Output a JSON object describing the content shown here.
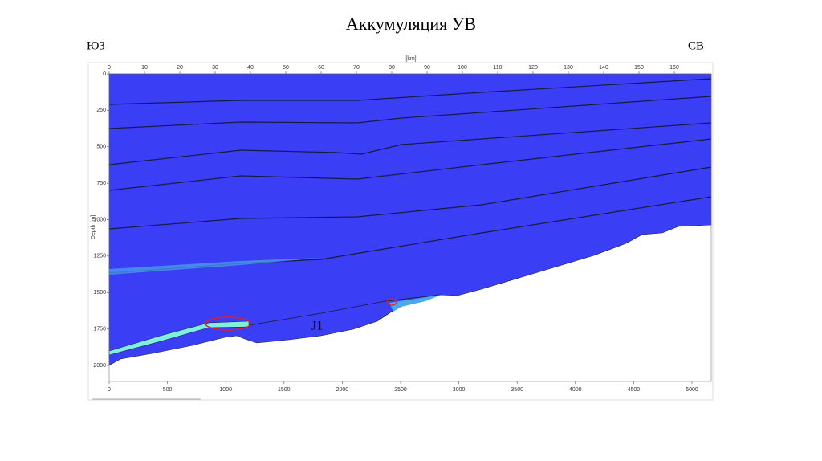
{
  "title": "Аккумуляция УВ",
  "left_label": "ЮЗ",
  "right_label": "СВ",
  "section": {
    "top_axis": {
      "label": "[km]",
      "ticks": [
        0,
        10,
        20,
        30,
        40,
        50,
        60,
        70,
        80,
        90,
        100,
        110,
        120,
        130,
        140,
        150,
        160
      ]
    },
    "depth_axis": {
      "label": "Depth [m]",
      "ticks": [
        0,
        250,
        500,
        750,
        1000,
        1250,
        1500,
        1750,
        2000
      ]
    },
    "bottom_axis": {
      "ticks": [
        0,
        500,
        1000,
        1500,
        2000,
        2500,
        3000,
        3500,
        4000,
        4500,
        5000
      ]
    },
    "horizon_label": "J1"
  }
}
